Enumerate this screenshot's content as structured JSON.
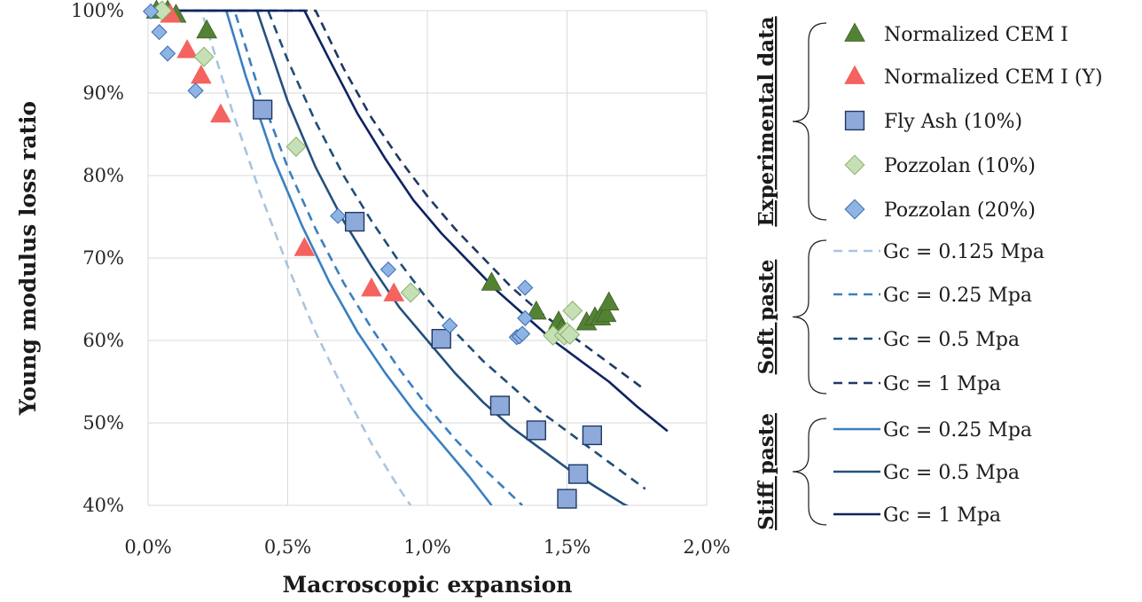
{
  "chart_data": {
    "type": "scatter",
    "xlabel": "Macroscopic expansion",
    "ylabel": "Young modulus loss ratio",
    "xlim": [
      0.0,
      2.0
    ],
    "ylim": [
      40,
      100
    ],
    "x_ticks": [
      "0,0%",
      "0,5%",
      "1,0%",
      "1,5%",
      "2,0%"
    ],
    "y_ticks": [
      "40%",
      "50%",
      "60%",
      "70%",
      "80%",
      "90%",
      "100%"
    ],
    "grid": true,
    "legend_position": "right",
    "legend_groups": [
      {
        "title": "Experimental data",
        "items": [
          "Normalized CEM I",
          "Normalized CEM I (Y)",
          "Fly Ash (10%)",
          "Pozzolan (10%)",
          "Pozzolan (20%)"
        ]
      },
      {
        "title": "Soft paste",
        "items": [
          "Gc = 0.125 Mpa",
          "Gc = 0.25 Mpa",
          "Gc = 0.5 Mpa",
          "Gc = 1 Mpa"
        ]
      },
      {
        "title": "Stiff paste",
        "items": [
          "Gc = 0.25 Mpa",
          "Gc = 0.5 Mpa",
          "Gc = 1 Mpa"
        ]
      }
    ],
    "scatter_series": [
      {
        "name": "Normalized CEM I",
        "marker": "triangle",
        "color": "#548235",
        "points": [
          [
            0.03,
            100
          ],
          [
            0.07,
            100
          ],
          [
            0.1,
            99.5
          ],
          [
            0.21,
            97.6
          ],
          [
            1.23,
            67
          ],
          [
            1.39,
            63.5
          ],
          [
            1.47,
            62.3
          ],
          [
            1.48,
            61.3
          ],
          [
            1.57,
            62.2
          ],
          [
            1.6,
            62.8
          ],
          [
            1.62,
            62.8
          ],
          [
            1.64,
            63.2
          ],
          [
            1.65,
            64.6
          ]
        ]
      },
      {
        "name": "Normalized CEM I (Y)",
        "marker": "triangle",
        "color": "#f4635f",
        "points": [
          [
            0.08,
            99.5
          ],
          [
            0.14,
            95.2
          ],
          [
            0.19,
            92.1
          ],
          [
            0.26,
            87.4
          ],
          [
            0.56,
            71.2
          ],
          [
            0.8,
            66.3
          ],
          [
            0.88,
            65.7
          ]
        ]
      },
      {
        "name": "Fly Ash (10%)",
        "marker": "square",
        "color": "#8eaadb",
        "points": [
          [
            0.41,
            88
          ],
          [
            0.74,
            74.4
          ],
          [
            1.05,
            60.2
          ],
          [
            1.26,
            52.1
          ],
          [
            1.39,
            49.1
          ],
          [
            1.59,
            48.5
          ],
          [
            1.54,
            43.8
          ],
          [
            1.5,
            40.8
          ]
        ]
      },
      {
        "name": "Pozzolan (10%)",
        "marker": "diamond",
        "color": "#c5e0b4",
        "points": [
          [
            0.05,
            100
          ],
          [
            0.2,
            94.4
          ],
          [
            0.53,
            83.5
          ],
          [
            0.94,
            65.8
          ],
          [
            1.45,
            60.6
          ],
          [
            1.49,
            60.6
          ],
          [
            1.5,
            61
          ],
          [
            1.51,
            60.7
          ],
          [
            1.52,
            63.6
          ]
        ]
      },
      {
        "name": "Pozzolan (20%)",
        "marker": "diamond",
        "color": "#8eb4e3",
        "points": [
          [
            0.01,
            99.9
          ],
          [
            0.04,
            97.4
          ],
          [
            0.07,
            94.8
          ],
          [
            0.17,
            90.3
          ],
          [
            0.68,
            75.1
          ],
          [
            0.86,
            68.6
          ],
          [
            1.08,
            61.8
          ],
          [
            1.32,
            60.4
          ],
          [
            1.33,
            60.5
          ],
          [
            1.34,
            60.8
          ],
          [
            1.35,
            62.7
          ],
          [
            1.35,
            66.4
          ]
        ]
      }
    ],
    "curve_series": [
      {
        "name": "Gc = 0.125 Mpa",
        "group": "Soft paste",
        "style": "dashed",
        "color": "#a9c4e0",
        "points": [
          [
            0,
            100
          ],
          [
            0.19,
            100
          ],
          [
            0.2,
            99
          ],
          [
            0.3,
            88
          ],
          [
            0.4,
            78
          ],
          [
            0.5,
            69
          ],
          [
            0.6,
            61
          ],
          [
            0.7,
            54
          ],
          [
            0.8,
            47.5
          ],
          [
            0.9,
            42
          ],
          [
            0.94,
            40
          ]
        ]
      },
      {
        "name": "Gc = 0.25 Mpa",
        "group": "Soft paste",
        "style": "dashed",
        "color": "#3a7fc1",
        "points": [
          [
            0,
            100
          ],
          [
            0.31,
            100
          ],
          [
            0.4,
            90
          ],
          [
            0.5,
            81
          ],
          [
            0.6,
            73.5
          ],
          [
            0.7,
            67
          ],
          [
            0.8,
            61.5
          ],
          [
            0.9,
            56.5
          ],
          [
            1.0,
            52
          ],
          [
            1.1,
            48
          ],
          [
            1.2,
            44.5
          ],
          [
            1.3,
            41.3
          ],
          [
            1.34,
            40
          ]
        ]
      },
      {
        "name": "Gc = 0.5 Mpa",
        "group": "Soft paste",
        "style": "dashed",
        "color": "#1f4e79",
        "points": [
          [
            0,
            100
          ],
          [
            0.43,
            100
          ],
          [
            0.5,
            94
          ],
          [
            0.6,
            86.5
          ],
          [
            0.7,
            80
          ],
          [
            0.8,
            74.5
          ],
          [
            0.9,
            69.5
          ],
          [
            1.0,
            65
          ],
          [
            1.1,
            61
          ],
          [
            1.2,
            57.5
          ],
          [
            1.3,
            54.5
          ],
          [
            1.4,
            51.5
          ],
          [
            1.5,
            49
          ],
          [
            1.6,
            46.5
          ],
          [
            1.7,
            44
          ],
          [
            1.78,
            42
          ]
        ]
      },
      {
        "name": "Gc = 1 Mpa",
        "group": "Soft paste",
        "style": "dashed",
        "color": "#1f3864",
        "points": [
          [
            0,
            100
          ],
          [
            0.6,
            100
          ],
          [
            0.7,
            93
          ],
          [
            0.8,
            87
          ],
          [
            0.9,
            82
          ],
          [
            1.0,
            77.5
          ],
          [
            1.1,
            73.5
          ],
          [
            1.2,
            70
          ],
          [
            1.3,
            66.5
          ],
          [
            1.4,
            63.5
          ],
          [
            1.5,
            61
          ],
          [
            1.6,
            58.5
          ],
          [
            1.7,
            56
          ],
          [
            1.78,
            54
          ]
        ]
      },
      {
        "name": "Gc = 0.25 Mpa",
        "group": "Stiff paste",
        "style": "solid",
        "color": "#3a7fc1",
        "points": [
          [
            0,
            100
          ],
          [
            0.28,
            100
          ],
          [
            0.35,
            92
          ],
          [
            0.45,
            82
          ],
          [
            0.55,
            74
          ],
          [
            0.65,
            67
          ],
          [
            0.75,
            61
          ],
          [
            0.85,
            56
          ],
          [
            0.95,
            51.5
          ],
          [
            1.05,
            47.5
          ],
          [
            1.15,
            43.5
          ],
          [
            1.23,
            40
          ]
        ]
      },
      {
        "name": "Gc = 0.5 Mpa",
        "group": "Stiff paste",
        "style": "solid",
        "color": "#24507e",
        "points": [
          [
            0,
            100
          ],
          [
            0.39,
            100
          ],
          [
            0.5,
            89
          ],
          [
            0.6,
            81
          ],
          [
            0.7,
            74.5
          ],
          [
            0.8,
            69
          ],
          [
            0.9,
            64
          ],
          [
            1.0,
            60
          ],
          [
            1.1,
            56
          ],
          [
            1.2,
            52.5
          ],
          [
            1.3,
            49.5
          ],
          [
            1.4,
            47
          ],
          [
            1.5,
            44.5
          ],
          [
            1.6,
            42.3
          ],
          [
            1.7,
            40.2
          ],
          [
            1.74,
            39.5
          ]
        ]
      },
      {
        "name": "Gc = 1 Mpa",
        "group": "Stiff paste",
        "style": "solid",
        "color": "#0f2361",
        "points": [
          [
            0,
            100
          ],
          [
            0.56,
            100
          ],
          [
            0.65,
            94
          ],
          [
            0.75,
            87.5
          ],
          [
            0.85,
            82
          ],
          [
            0.95,
            77
          ],
          [
            1.05,
            73
          ],
          [
            1.15,
            69.5
          ],
          [
            1.25,
            66
          ],
          [
            1.35,
            63
          ],
          [
            1.45,
            60
          ],
          [
            1.55,
            57.5
          ],
          [
            1.65,
            55
          ],
          [
            1.75,
            52
          ],
          [
            1.86,
            49
          ]
        ]
      }
    ]
  }
}
